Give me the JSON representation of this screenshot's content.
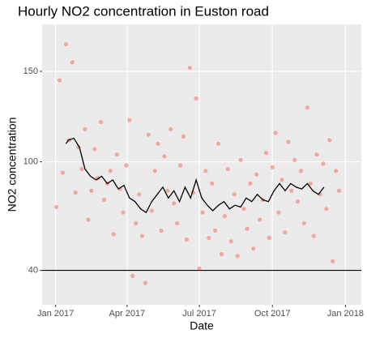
{
  "chart_data": {
    "type": "scatter",
    "title": "Hourly NO2 concentration in Euston road",
    "x_label": "Date",
    "y_label": "NO2 concentration",
    "xlim": [
      "2016-12-15",
      "2018-01-21"
    ],
    "xticks": [
      {
        "value": "2017-01-01",
        "label": "Jan 2017"
      },
      {
        "value": "2017-04-01",
        "label": "Apr 2017"
      },
      {
        "value": "2017-07-01",
        "label": "Jul 2017"
      },
      {
        "value": "2017-10-01",
        "label": "Oct 2017"
      },
      {
        "value": "2018-01-01",
        "label": "Jan 2018"
      }
    ],
    "ylim": [
      21,
      176
    ],
    "yticks": [
      40,
      100,
      150
    ],
    "grid": true,
    "hline": 40,
    "series": [
      {
        "type": "scatter",
        "color": "#F8766D",
        "x": [
          "2017-01-02",
          "2017-01-06",
          "2017-01-10",
          "2017-01-14",
          "2017-01-18",
          "2017-01-22",
          "2017-01-26",
          "2017-01-30",
          "2017-02-03",
          "2017-02-07",
          "2017-02-11",
          "2017-02-15",
          "2017-02-19",
          "2017-02-23",
          "2017-02-27",
          "2017-03-03",
          "2017-03-07",
          "2017-03-11",
          "2017-03-15",
          "2017-03-19",
          "2017-03-23",
          "2017-03-27",
          "2017-03-31",
          "2017-04-04",
          "2017-04-08",
          "2017-04-12",
          "2017-04-16",
          "2017-04-20",
          "2017-04-24",
          "2017-04-28",
          "2017-05-02",
          "2017-05-06",
          "2017-05-10",
          "2017-05-14",
          "2017-05-18",
          "2017-05-22",
          "2017-05-26",
          "2017-05-30",
          "2017-06-03",
          "2017-06-07",
          "2017-06-11",
          "2017-06-15",
          "2017-06-19",
          "2017-06-23",
          "2017-06-27",
          "2017-07-01",
          "2017-07-05",
          "2017-07-09",
          "2017-07-13",
          "2017-07-17",
          "2017-07-21",
          "2017-07-25",
          "2017-07-29",
          "2017-08-02",
          "2017-08-06",
          "2017-08-10",
          "2017-08-14",
          "2017-08-18",
          "2017-08-22",
          "2017-08-26",
          "2017-08-30",
          "2017-09-03",
          "2017-09-07",
          "2017-09-11",
          "2017-09-15",
          "2017-09-19",
          "2017-09-23",
          "2017-09-27",
          "2017-10-01",
          "2017-10-05",
          "2017-10-09",
          "2017-10-13",
          "2017-10-17",
          "2017-10-21",
          "2017-10-25",
          "2017-10-29",
          "2017-11-02",
          "2017-11-06",
          "2017-11-10",
          "2017-11-14",
          "2017-11-18",
          "2017-11-22",
          "2017-11-26",
          "2017-11-30",
          "2017-12-04",
          "2017-12-08",
          "2017-12-12",
          "2017-12-16",
          "2017-12-20",
          "2017-12-24"
        ],
        "values": [
          75,
          145,
          94,
          165,
          112,
          155,
          83,
          108,
          96,
          118,
          68,
          84,
          107,
          91,
          122,
          79,
          88,
          95,
          60,
          104,
          85,
          72,
          98,
          123,
          37,
          66,
          82,
          59,
          33,
          115,
          73,
          95,
          110,
          62,
          103,
          84,
          118,
          77,
          66,
          98,
          114,
          57,
          152,
          83,
          135,
          41,
          72,
          95,
          58,
          88,
          62,
          110,
          49,
          70,
          96,
          56,
          82,
          48,
          101,
          74,
          63,
          88,
          52,
          93,
          68,
          79,
          105,
          58,
          97,
          116,
          72,
          90,
          61,
          111,
          84,
          101,
          78,
          95,
          66,
          130,
          88,
          59,
          104,
          82,
          99,
          74,
          112,
          45,
          95,
          84
        ]
      },
      {
        "type": "line",
        "color": "#000000",
        "x": [
          "2017-01-14",
          "2017-01-17",
          "2017-01-24",
          "2017-01-31",
          "2017-02-07",
          "2017-02-14",
          "2017-02-21",
          "2017-02-28",
          "2017-03-07",
          "2017-03-14",
          "2017-03-21",
          "2017-03-28",
          "2017-04-04",
          "2017-04-11",
          "2017-04-18",
          "2017-04-25",
          "2017-05-02",
          "2017-05-09",
          "2017-05-16",
          "2017-05-23",
          "2017-05-30",
          "2017-06-06",
          "2017-06-13",
          "2017-06-20",
          "2017-06-27",
          "2017-07-04",
          "2017-07-11",
          "2017-07-18",
          "2017-07-25",
          "2017-08-01",
          "2017-08-08",
          "2017-08-15",
          "2017-08-22",
          "2017-08-29",
          "2017-09-05",
          "2017-09-12",
          "2017-09-19",
          "2017-09-26",
          "2017-10-03",
          "2017-10-10",
          "2017-10-17",
          "2017-10-24",
          "2017-10-31",
          "2017-11-07",
          "2017-11-14",
          "2017-11-21",
          "2017-11-28",
          "2017-12-05"
        ],
        "values": [
          110,
          112,
          113,
          108,
          96,
          92,
          90,
          92,
          88,
          90,
          85,
          87,
          80,
          78,
          74,
          72,
          78,
          82,
          86,
          80,
          84,
          78,
          86,
          80,
          90,
          80,
          76,
          73,
          76,
          78,
          74,
          76,
          75,
          80,
          78,
          82,
          79,
          78,
          84,
          88,
          84,
          88,
          86,
          85,
          88,
          84,
          82,
          86
        ]
      }
    ]
  }
}
